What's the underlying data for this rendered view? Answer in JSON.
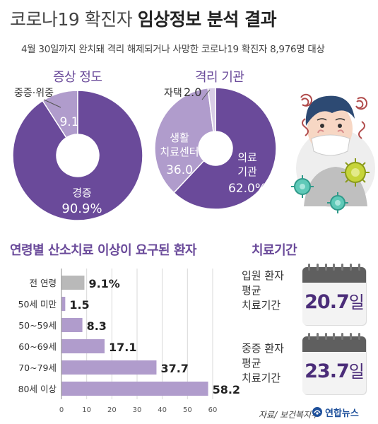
{
  "header": {
    "title_plain": "코로나19 확진자",
    "title_bold": "임상정보 분석 결과",
    "subtitle": "4월 30일까지 완치돼 격리 해제되거나 사망한 코로나19 확진자 8,976명 대상"
  },
  "colors": {
    "dark_purple": "#6a4a9a",
    "light_purple": "#b09ccc",
    "pale_purple": "#d8cde6",
    "grey_bar": "#b9b9b9",
    "value_purple": "#4b2d79"
  },
  "illustration": {
    "icons": [
      "masked-person-icon",
      "virus-icon"
    ]
  },
  "chart_data": [
    {
      "type": "pie",
      "title": "증상 정도",
      "slices": [
        {
          "name": "경증",
          "value": 90.9,
          "value_label": "90.9%"
        },
        {
          "name": "중증·위중",
          "value": 9.1,
          "value_label": "9.1"
        }
      ]
    },
    {
      "type": "pie",
      "title": "격리 기관",
      "slices": [
        {
          "name": "의료 기관",
          "line1": "의료",
          "line2": "기관",
          "value": 62.0,
          "value_label": "62.0%"
        },
        {
          "name": "생활 치료센터",
          "line1": "생활",
          "line2": "치료센터",
          "value": 36.0,
          "value_label": "36.0"
        },
        {
          "name": "자택",
          "value": 2.0,
          "value_label": "2.0"
        }
      ]
    },
    {
      "type": "bar",
      "orientation": "horizontal",
      "title": "연령별 산소치료 이상이 요구된 환자",
      "categories": [
        "전 연령",
        "50세 미만",
        "50~59세",
        "60~69세",
        "70~79세",
        "80세 이상"
      ],
      "values": [
        9.1,
        1.5,
        8.3,
        17.1,
        37.7,
        58.2
      ],
      "value_labels": [
        "9.1%",
        "1.5",
        "8.3",
        "17.1",
        "37.7",
        "58.2"
      ],
      "xlim": [
        0,
        60
      ],
      "xticks": [
        0,
        10,
        20,
        30,
        40,
        50,
        60
      ],
      "grid": true
    }
  ],
  "treatment": {
    "title": "치료기간",
    "items": [
      {
        "label_lines": [
          "입원 환자",
          "평균",
          "치료기간"
        ],
        "value": "20.7",
        "unit": "일"
      },
      {
        "label_lines": [
          "중증 환자",
          "평균",
          "치료기간"
        ],
        "value": "23.7",
        "unit": "일"
      }
    ]
  },
  "footer": {
    "source": "자료/ 보건복지부",
    "logo_text": "연합뉴스"
  }
}
